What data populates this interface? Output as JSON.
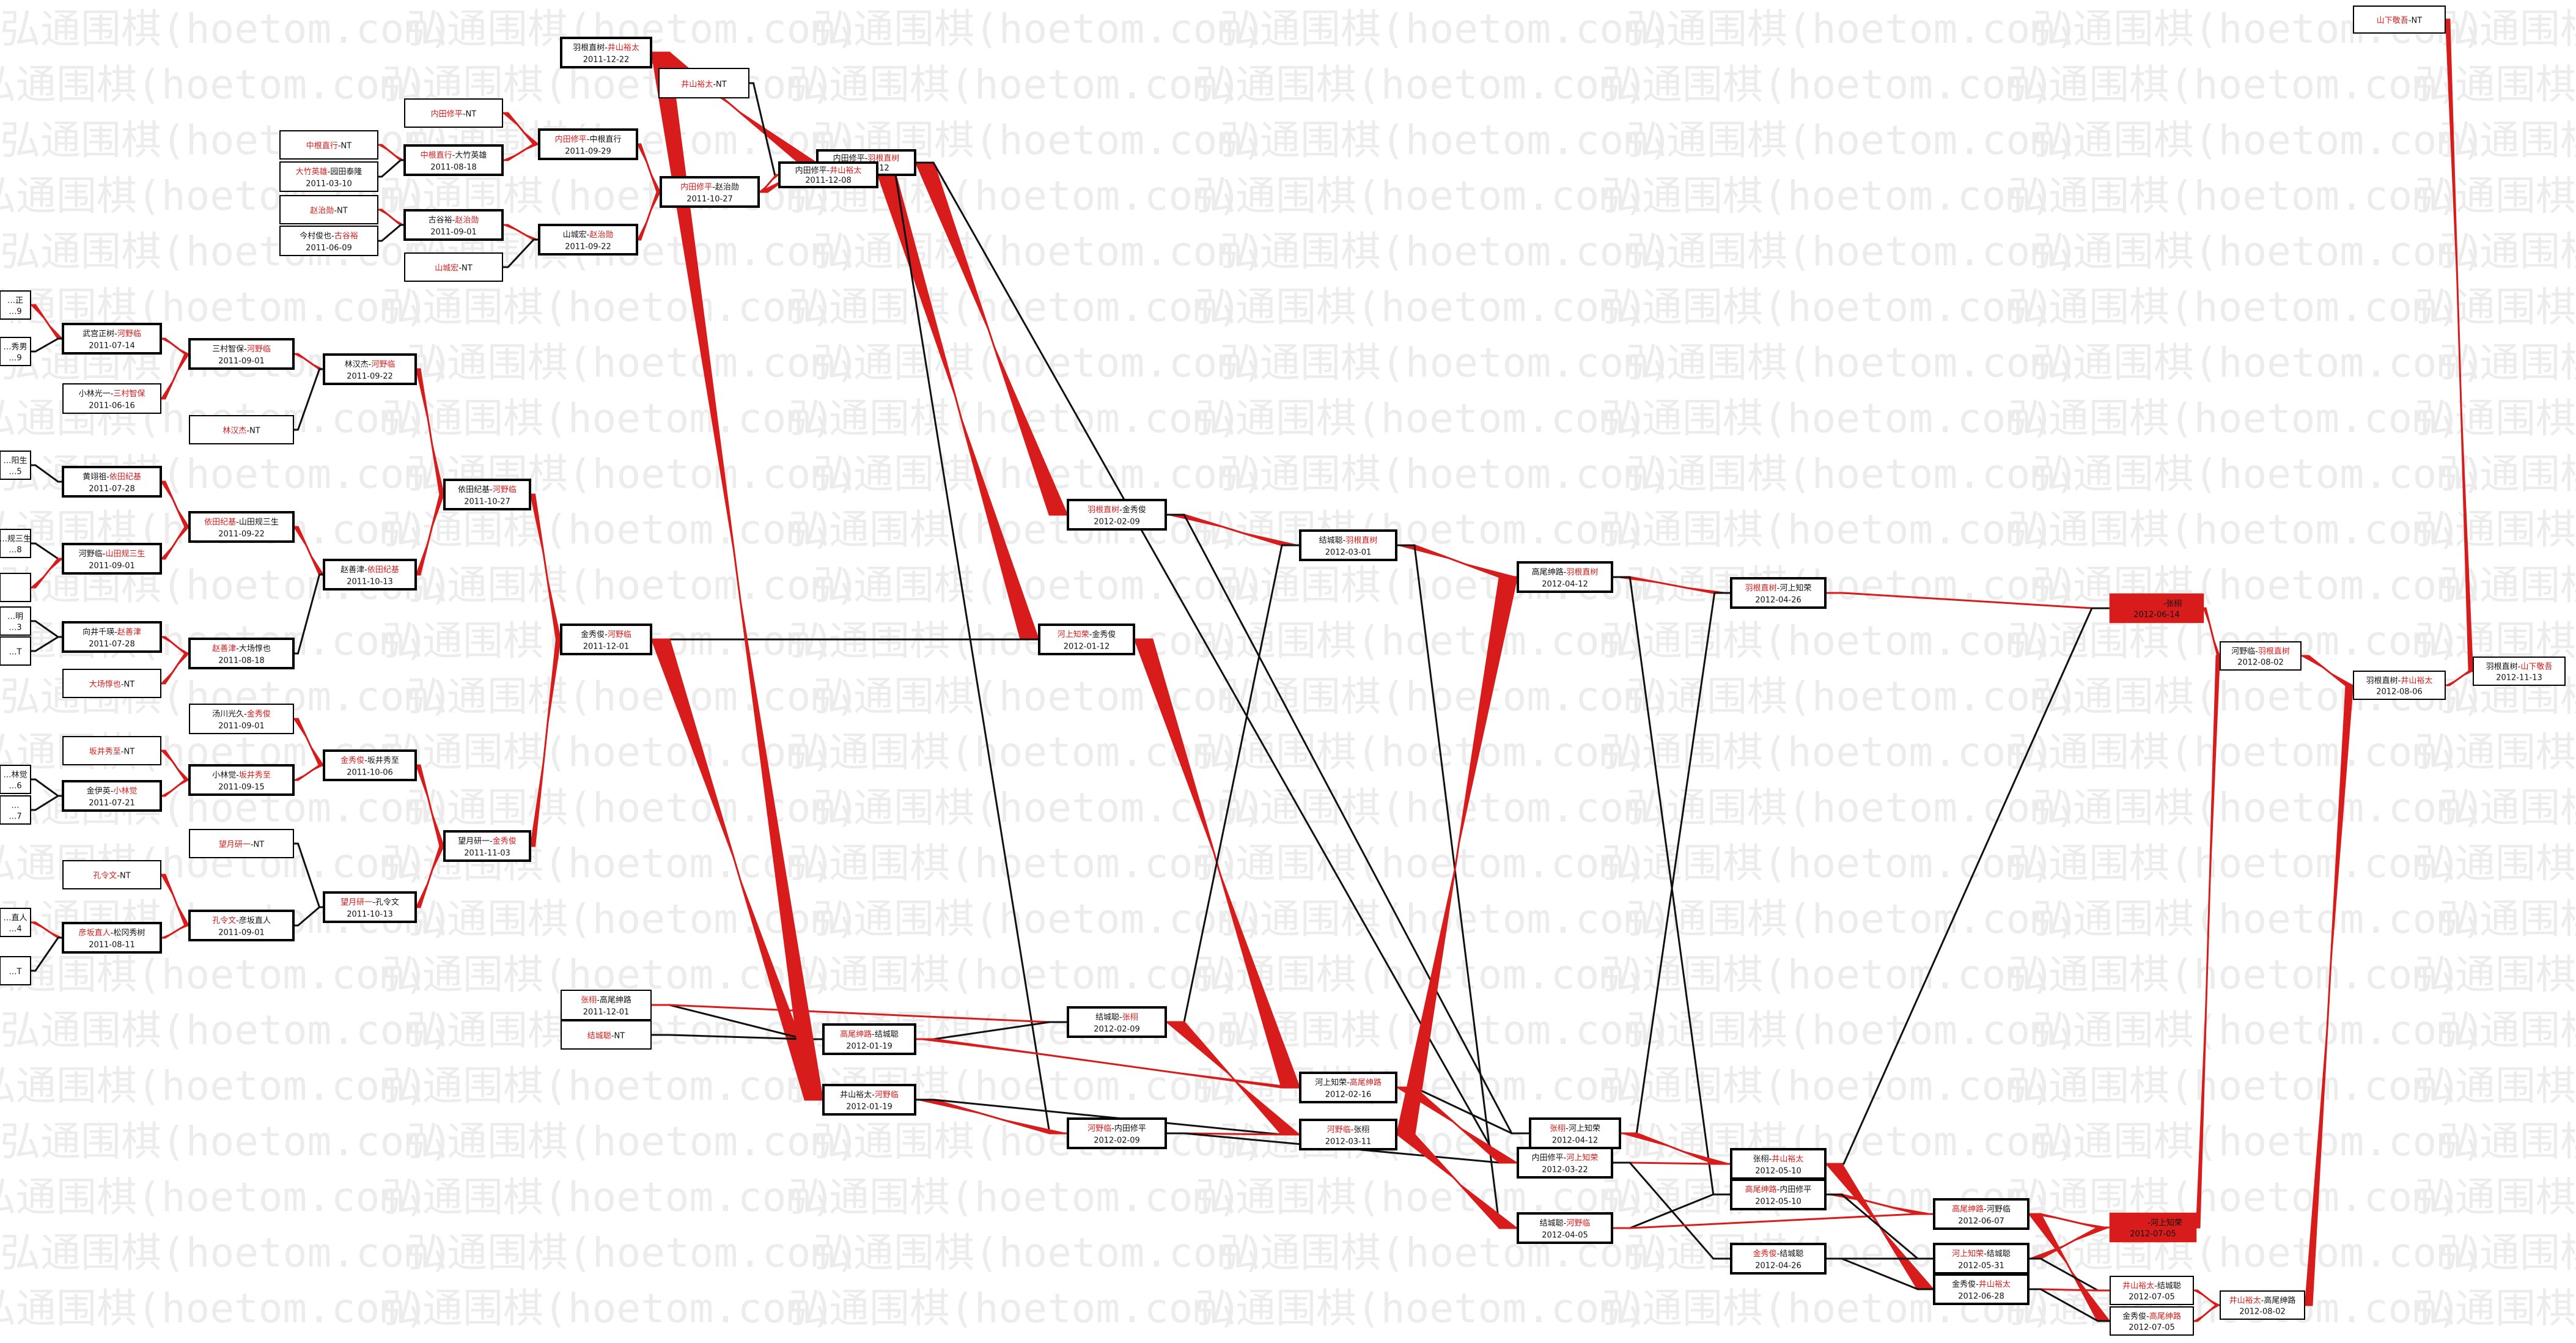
{
  "watermark": "弘通围棋(hoetom.com)",
  "colors": {
    "win": "#d81c1c",
    "line": "#111111"
  },
  "matches": [
    {
      "id": "n1",
      "a": "羽根直树",
      "b": "井山裕太",
      "date": "2011-12-22",
      "winner": "b"
    },
    {
      "id": "n2",
      "a": "井山裕太",
      "b": "NT",
      "date": "",
      "winner": "a"
    },
    {
      "id": "n3",
      "a": "内田修平",
      "b": "NT",
      "date": "",
      "winner": "a"
    },
    {
      "id": "n4",
      "a": "中根直行",
      "b": "NT",
      "date": "",
      "winner": "a"
    },
    {
      "id": "n5",
      "a": "中根直行",
      "b": "大竹英雄",
      "date": "2011-08-18",
      "winner": "a"
    },
    {
      "id": "n6",
      "a": "大竹英雄",
      "b": "园田泰隆",
      "date": "2011-03-10",
      "winner": "a"
    },
    {
      "id": "n7",
      "a": "内田修平",
      "b": "中根直行",
      "date": "2011-09-29",
      "winner": "a"
    },
    {
      "id": "n8",
      "a": "内田修平",
      "b": "赵治勋",
      "date": "2011-10-27",
      "winner": "a"
    },
    {
      "id": "n9",
      "a": "赵治勋",
      "b": "NT",
      "date": "",
      "winner": "a"
    },
    {
      "id": "n10",
      "a": "古谷裕",
      "b": "赵治勋",
      "date": "2011-09-01",
      "winner": "b"
    },
    {
      "id": "n11",
      "a": "今村俊也",
      "b": "古谷裕",
      "date": "2011-06-09",
      "winner": "b"
    },
    {
      "id": "n12",
      "a": "山城宏",
      "b": "赵治勋",
      "date": "2011-09-22",
      "winner": "b"
    },
    {
      "id": "n13",
      "a": "山城宏",
      "b": "NT",
      "date": "",
      "winner": "a"
    },
    {
      "id": "n14",
      "a": "内田修平",
      "b": "羽根直树",
      "date": "2011-12-12",
      "winner": "b"
    },
    {
      "id": "n15",
      "a": "内田修平",
      "b": "井山裕太",
      "date": "2011-12-08",
      "winner": "b"
    },
    {
      "id": "n16",
      "a": "武宫正树",
      "b": "河野临",
      "date": "2011-07-14",
      "winner": "b"
    },
    {
      "id": "n17",
      "a": "三村智保",
      "b": "河野临",
      "date": "2011-09-01",
      "winner": "b"
    },
    {
      "id": "n18",
      "a": "小林光一",
      "b": "三村智保",
      "date": "2011-06-16",
      "winner": "b"
    },
    {
      "id": "n19",
      "a": "林汉杰",
      "b": "河野临",
      "date": "2011-09-22",
      "winner": "b"
    },
    {
      "id": "n20",
      "a": "林汉杰",
      "b": "NT",
      "date": "",
      "winner": "a"
    },
    {
      "id": "n21",
      "a": "黄翊祖",
      "b": "依田纪基",
      "date": "2011-07-28",
      "winner": "b"
    },
    {
      "id": "n22",
      "a": "依田纪基",
      "b": "山田规三生",
      "date": "2011-09-22",
      "winner": "a"
    },
    {
      "id": "n23",
      "a": "河野临",
      "b": "山田规三生",
      "date": "2011-09-01",
      "winner": "b"
    },
    {
      "id": "n24",
      "a": "依田纪基",
      "b": "河野临",
      "date": "2011-10-27",
      "winner": "b"
    },
    {
      "id": "n25",
      "a": "赵善津",
      "b": "依田纪基",
      "date": "2011-10-13",
      "winner": "b"
    },
    {
      "id": "n26",
      "a": "向井千瑛",
      "b": "赵善津",
      "date": "2011-07-28",
      "winner": "b"
    },
    {
      "id": "n27",
      "a": "赵善津",
      "b": "大场惇也",
      "date": "2011-08-18",
      "winner": "a"
    },
    {
      "id": "n28",
      "a": "大场惇也",
      "b": "NT",
      "date": "",
      "winner": "a"
    },
    {
      "id": "n29",
      "a": "金秀俊",
      "b": "河野临",
      "date": "2011-12-01",
      "winner": "b"
    },
    {
      "id": "n30",
      "a": "汤川光久",
      "b": "金秀俊",
      "date": "2011-09-01",
      "winner": "b"
    },
    {
      "id": "n31",
      "a": "金秀俊",
      "b": "坂井秀至",
      "date": "2011-10-06",
      "winner": "a"
    },
    {
      "id": "n32",
      "a": "坂井秀至",
      "b": "NT",
      "date": "",
      "winner": "a"
    },
    {
      "id": "n33",
      "a": "小林觉",
      "b": "坂井秀至",
      "date": "2011-09-15",
      "winner": "b"
    },
    {
      "id": "n34",
      "a": "金伊英",
      "b": "小林觉",
      "date": "2011-07-21",
      "winner": "b"
    },
    {
      "id": "n35",
      "a": "望月研一",
      "b": "金秀俊",
      "date": "2011-11-03",
      "winner": "b"
    },
    {
      "id": "n36",
      "a": "望月研一",
      "b": "NT",
      "date": "",
      "winner": "a"
    },
    {
      "id": "n37",
      "a": "望月研一",
      "b": "孔令文",
      "date": "2011-10-13",
      "winner": "a"
    },
    {
      "id": "n38",
      "a": "孔令文",
      "b": "NT",
      "date": "",
      "winner": "a"
    },
    {
      "id": "n39",
      "a": "孔令文",
      "b": "彦坂直人",
      "date": "2011-09-01",
      "winner": "a"
    },
    {
      "id": "n40",
      "a": "彦坂直人",
      "b": "松冈秀树",
      "date": "2011-08-11",
      "winner": "a"
    },
    {
      "id": "n41",
      "a": "张栩",
      "b": "高尾绅路",
      "date": "2011-12-01",
      "winner": "a"
    },
    {
      "id": "n42",
      "a": "结城聪",
      "b": "NT",
      "date": "",
      "winner": "a"
    },
    {
      "id": "n43",
      "a": "高尾绅路",
      "b": "结城聪",
      "date": "2012-01-19",
      "winner": "a"
    },
    {
      "id": "n44",
      "a": "井山裕太",
      "b": "河野临",
      "date": "2012-01-19",
      "winner": "b"
    },
    {
      "id": "n45",
      "a": "羽根直树",
      "b": "金秀俊",
      "date": "2012-02-09",
      "winner": "a"
    },
    {
      "id": "n46",
      "a": "河上知荣",
      "b": "金秀俊",
      "date": "2012-01-12",
      "winner": "a"
    },
    {
      "id": "n47",
      "a": "结城聪",
      "b": "张栩",
      "date": "2012-02-09",
      "winner": "b"
    },
    {
      "id": "n48",
      "a": "河野临",
      "b": "内田修平",
      "date": "2012-02-09",
      "winner": "a"
    },
    {
      "id": "n49",
      "a": "结城聪",
      "b": "羽根直树",
      "date": "2012-03-01",
      "winner": "b"
    },
    {
      "id": "n50",
      "a": "河上知荣",
      "b": "高尾绅路",
      "date": "2012-02-16",
      "winner": "b"
    },
    {
      "id": "n51",
      "a": "河野临",
      "b": "张栩",
      "date": "2012-03-11",
      "winner": "a"
    },
    {
      "id": "n52",
      "a": "高尾绅路",
      "b": "羽根直树",
      "date": "2012-04-12",
      "winner": "b"
    },
    {
      "id": "n53",
      "a": "张栩",
      "b": "河上知荣",
      "date": "2012-04-12",
      "winner": "a"
    },
    {
      "id": "n54",
      "a": "内田修平",
      "b": "河上知荣",
      "date": "2012-03-22",
      "winner": "b"
    },
    {
      "id": "n55",
      "a": "结城聪",
      "b": "河野临",
      "date": "2012-04-05",
      "winner": "b"
    },
    {
      "id": "n56",
      "a": "羽根直树",
      "b": "河上知荣",
      "date": "2012-04-26",
      "winner": "a"
    },
    {
      "id": "n57",
      "a": "张栩",
      "b": "井山裕太",
      "date": "2012-05-10",
      "winner": "b"
    },
    {
      "id": "n58",
      "a": "高尾绅路",
      "b": "内田修平",
      "date": "2012-05-10",
      "winner": "a"
    },
    {
      "id": "n59",
      "a": "金秀俊",
      "b": "结城聪",
      "date": "2012-04-26",
      "winner": "a"
    },
    {
      "id": "n60",
      "a": "羽根直树",
      "b": "张栩",
      "date": "2012-06-14",
      "winner": "a"
    },
    {
      "id": "n61",
      "a": "高尾绅路",
      "b": "河野临",
      "date": "2012-06-07",
      "winner": "a"
    },
    {
      "id": "n62",
      "a": "河上知荣",
      "b": "结城聪",
      "date": "2012-05-31",
      "winner": "a"
    },
    {
      "id": "n63",
      "a": "金秀俊",
      "b": "井山裕太",
      "date": "2012-06-28",
      "winner": "b"
    },
    {
      "id": "n64",
      "a": "河野临",
      "b": "河上知荣",
      "date": "2012-07-05",
      "winner": "a"
    },
    {
      "id": "n65",
      "a": "井山裕太",
      "b": "结城聪",
      "date": "2012-07-05",
      "winner": "a"
    },
    {
      "id": "n66",
      "a": "金秀俊",
      "b": "高尾绅路",
      "date": "2012-07-05",
      "winner": "b"
    },
    {
      "id": "n67",
      "a": "河野临",
      "b": "羽根直树",
      "date": "2012-08-02",
      "winner": "b"
    },
    {
      "id": "n68",
      "a": "井山裕太",
      "b": "高尾绅路",
      "date": "2012-08-02",
      "winner": "a"
    },
    {
      "id": "n69",
      "a": "羽根直树",
      "b": "井山裕太",
      "date": "2012-08-06",
      "winner": "b"
    },
    {
      "id": "n70",
      "a": "山下敬吾",
      "b": "NT",
      "date": "",
      "winner": "a"
    },
    {
      "id": "n71",
      "a": "羽根直树",
      "b": "山下敬吾",
      "date": "2012-11-13",
      "winner": "b"
    },
    {
      "id": "e1",
      "a": "…正",
      "b": "",
      "date": "…9",
      "winner": "none"
    },
    {
      "id": "e2",
      "a": "…秀男",
      "b": "",
      "date": "…9",
      "winner": "none"
    },
    {
      "id": "e3",
      "a": "…阳生",
      "b": "",
      "date": "…5",
      "winner": "none"
    },
    {
      "id": "e4",
      "a": "…规三生",
      "b": "",
      "date": "…8",
      "winner": "b"
    },
    {
      "id": "e5",
      "a": "",
      "b": "",
      "date": "",
      "winner": "none"
    },
    {
      "id": "e6",
      "a": "…明",
      "b": "",
      "date": "…3",
      "winner": "none"
    },
    {
      "id": "e7",
      "a": "…T",
      "b": "",
      "date": "",
      "winner": "none"
    },
    {
      "id": "e8",
      "a": "…林觉",
      "b": "",
      "date": "…6",
      "winner": "b"
    },
    {
      "id": "e9",
      "a": "…",
      "b": "",
      "date": "…7",
      "winner": "none"
    },
    {
      "id": "e10",
      "a": "…直人",
      "b": "",
      "date": "…4",
      "winner": "b"
    },
    {
      "id": "e11",
      "a": "…T",
      "b": "",
      "date": "",
      "winner": "none"
    }
  ],
  "connections": [
    {
      "from": "n2",
      "to": "n1",
      "color": "red"
    },
    {
      "from": "n1",
      "to": "n14",
      "color": "red"
    },
    {
      "from": "n2",
      "to": "n15",
      "color": "black"
    },
    {
      "from": "n4",
      "to": "n5",
      "color": "red"
    },
    {
      "from": "n6",
      "to": "n5",
      "color": "black"
    },
    {
      "from": "n5",
      "to": "n7",
      "color": "red"
    },
    {
      "from": "n3",
      "to": "n7",
      "color": "red"
    },
    {
      "from": "n7",
      "to": "n8",
      "color": "red"
    },
    {
      "from": "n9",
      "to": "n10",
      "color": "red"
    },
    {
      "from": "n11",
      "to": "n10",
      "color": "black"
    },
    {
      "from": "n10",
      "to": "n12",
      "color": "red"
    },
    {
      "from": "n13",
      "to": "n12",
      "color": "black"
    },
    {
      "from": "n12",
      "to": "n8",
      "color": "red"
    },
    {
      "from": "n8",
      "to": "n15",
      "color": "red"
    },
    {
      "from": "n8",
      "to": "n14",
      "color": "red"
    },
    {
      "from": "n14",
      "to": "n45",
      "color": "red"
    },
    {
      "from": "n14",
      "to": "n54",
      "color": "black"
    },
    {
      "from": "n15",
      "to": "n46",
      "color": "red"
    },
    {
      "from": "n15",
      "to": "n48",
      "color": "black"
    },
    {
      "from": "n16",
      "to": "n17",
      "color": "red"
    },
    {
      "from": "n18",
      "to": "n17",
      "color": "red"
    },
    {
      "from": "n17",
      "to": "n19",
      "color": "red"
    },
    {
      "from": "n20",
      "to": "n19",
      "color": "black"
    },
    {
      "from": "n19",
      "to": "n24",
      "color": "red"
    },
    {
      "from": "n21",
      "to": "n22",
      "color": "red"
    },
    {
      "from": "n23",
      "to": "n22",
      "color": "red"
    },
    {
      "from": "n22",
      "to": "n25",
      "color": "red"
    },
    {
      "from": "n26",
      "to": "n27",
      "color": "red"
    },
    {
      "from": "n28",
      "to": "n27",
      "color": "red"
    },
    {
      "from": "n27",
      "to": "n25",
      "color": "black"
    },
    {
      "from": "n25",
      "to": "n24",
      "color": "red"
    },
    {
      "from": "n24",
      "to": "n29",
      "color": "red"
    },
    {
      "from": "n30",
      "to": "n31",
      "color": "red"
    },
    {
      "from": "n32",
      "to": "n33",
      "color": "red"
    },
    {
      "from": "n34",
      "to": "n33",
      "color": "red"
    },
    {
      "from": "n33",
      "to": "n31",
      "color": "red"
    },
    {
      "from": "n31",
      "to": "n35",
      "color": "red"
    },
    {
      "from": "n36",
      "to": "n37",
      "color": "black"
    },
    {
      "from": "n38",
      "to": "n39",
      "color": "red"
    },
    {
      "from": "n40",
      "to": "n39",
      "color": "red"
    },
    {
      "from": "n39",
      "to": "n37",
      "color": "black"
    },
    {
      "from": "n37",
      "to": "n35",
      "color": "red"
    },
    {
      "from": "n35",
      "to": "n29",
      "color": "red"
    },
    {
      "from": "n29",
      "to": "n46",
      "color": "black"
    },
    {
      "from": "n29",
      "to": "n44",
      "color": "red"
    },
    {
      "from": "n41",
      "to": "n43",
      "color": "black"
    },
    {
      "from": "n42",
      "to": "n43",
      "color": "black"
    },
    {
      "from": "n41",
      "to": "n47",
      "color": "red"
    },
    {
      "from": "n43",
      "to": "n47",
      "color": "black"
    },
    {
      "from": "n43",
      "to": "n50",
      "color": "red"
    },
    {
      "from": "n1",
      "to": "n44",
      "color": "red"
    },
    {
      "from": "n44",
      "to": "n48",
      "color": "red"
    },
    {
      "from": "n44",
      "to": "n51",
      "color": "black"
    },
    {
      "from": "n45",
      "to": "n49",
      "color": "red"
    },
    {
      "from": "n45",
      "to": "n53",
      "color": "black"
    },
    {
      "from": "n46",
      "to": "n50",
      "color": "red"
    },
    {
      "from": "n47",
      "to": "n49",
      "color": "black"
    },
    {
      "from": "n47",
      "to": "n51",
      "color": "red"
    },
    {
      "from": "n48",
      "to": "n51",
      "color": "red"
    },
    {
      "from": "n48",
      "to": "n54",
      "color": "black"
    },
    {
      "from": "n49",
      "to": "n52",
      "color": "red"
    },
    {
      "from": "n49",
      "to": "n55",
      "color": "black"
    },
    {
      "from": "n50",
      "to": "n53",
      "color": "black"
    },
    {
      "from": "n50",
      "to": "n54",
      "color": "red"
    },
    {
      "from": "n51",
      "to": "n52",
      "color": "red"
    },
    {
      "from": "n51",
      "to": "n55",
      "color": "red"
    },
    {
      "from": "n52",
      "to": "n56",
      "color": "red"
    },
    {
      "from": "n52",
      "to": "n58",
      "color": "black"
    },
    {
      "from": "n53",
      "to": "n56",
      "color": "black"
    },
    {
      "from": "n53",
      "to": "n57",
      "color": "red"
    },
    {
      "from": "n54",
      "to": "n57",
      "color": "red"
    },
    {
      "from": "n54",
      "to": "n59",
      "color": "black"
    },
    {
      "from": "n55",
      "to": "n58",
      "color": "black"
    },
    {
      "from": "n55",
      "to": "n61",
      "color": "red"
    },
    {
      "from": "n56",
      "to": "n60",
      "color": "red"
    },
    {
      "from": "n57",
      "to": "n60",
      "color": "black"
    },
    {
      "from": "n57",
      "to": "n63",
      "color": "red"
    },
    {
      "from": "n58",
      "to": "n61",
      "color": "red"
    },
    {
      "from": "n58",
      "to": "n62",
      "color": "black"
    },
    {
      "from": "n59",
      "to": "n62",
      "color": "black"
    },
    {
      "from": "n59",
      "to": "n63",
      "color": "black"
    },
    {
      "from": "n61",
      "to": "n64",
      "color": "red"
    },
    {
      "from": "n61",
      "to": "n66",
      "color": "red"
    },
    {
      "from": "n62",
      "to": "n64",
      "color": "red"
    },
    {
      "from": "n62",
      "to": "n65",
      "color": "black"
    },
    {
      "from": "n63",
      "to": "n65",
      "color": "red"
    },
    {
      "from": "n63",
      "to": "n66",
      "color": "black"
    },
    {
      "from": "n60",
      "to": "n67",
      "color": "red"
    },
    {
      "from": "n64",
      "to": "n67",
      "color": "red"
    },
    {
      "from": "n65",
      "to": "n68",
      "color": "red"
    },
    {
      "from": "n66",
      "to": "n68",
      "color": "red"
    },
    {
      "from": "n67",
      "to": "n69",
      "color": "red"
    },
    {
      "from": "n68",
      "to": "n69",
      "color": "red"
    },
    {
      "from": "n69",
      "to": "n71",
      "color": "red"
    },
    {
      "from": "n70",
      "to": "n71",
      "color": "red"
    },
    {
      "from": "e1",
      "to": "n16",
      "color": "red"
    },
    {
      "from": "e2",
      "to": "n16",
      "color": "black"
    },
    {
      "from": "e3",
      "to": "n21",
      "color": "black"
    },
    {
      "from": "e4",
      "to": "n23",
      "color": "black"
    },
    {
      "from": "e5",
      "to": "n23",
      "color": "red"
    },
    {
      "from": "e6",
      "to": "n26",
      "color": "black"
    },
    {
      "from": "e7",
      "to": "n26",
      "color": "black"
    },
    {
      "from": "e8",
      "to": "n34",
      "color": "black"
    },
    {
      "from": "e9",
      "to": "n34",
      "color": "black"
    },
    {
      "from": "e10",
      "to": "n40",
      "color": "red"
    },
    {
      "from": "e11",
      "to": "n40",
      "color": "black"
    }
  ]
}
